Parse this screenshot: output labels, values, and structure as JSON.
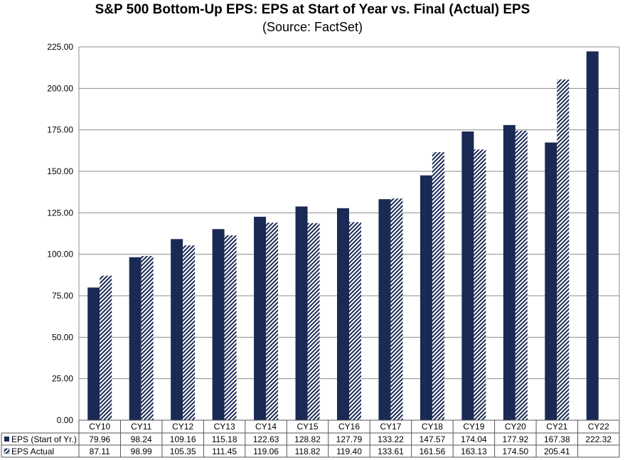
{
  "chart_data": {
    "type": "bar",
    "title": "S&P 500 Bottom-Up EPS: EPS at Start of Year vs. Final (Actual) EPS",
    "subtitle": "(Source: FactSet)",
    "xlabel": "",
    "ylabel": "",
    "ylim": [
      0,
      225
    ],
    "yticks": [
      "0.00",
      "25.00",
      "50.00",
      "75.00",
      "100.00",
      "125.00",
      "150.00",
      "175.00",
      "200.00",
      "225.00"
    ],
    "grid": true,
    "legend": "data-table-left",
    "categories": [
      "CY10",
      "CY11",
      "CY12",
      "CY13",
      "CY14",
      "CY15",
      "CY16",
      "CY17",
      "CY18",
      "CY19",
      "CY20",
      "CY21",
      "CY22"
    ],
    "series": [
      {
        "name": "EPS (Start of Yr.)",
        "color": "#1a2a54",
        "pattern": "solid",
        "values": [
          79.96,
          98.24,
          109.16,
          115.18,
          122.63,
          128.82,
          127.79,
          133.22,
          147.57,
          174.04,
          177.92,
          167.38,
          222.32
        ],
        "labels": [
          "79.96",
          "98.24",
          "109.16",
          "115.18",
          "122.63",
          "128.82",
          "127.79",
          "133.22",
          "147.57",
          "174.04",
          "177.92",
          "167.38",
          "222.32"
        ]
      },
      {
        "name": "EPS Actual",
        "color": "#1a2a54",
        "pattern": "diagonal-hatch",
        "values": [
          87.11,
          98.99,
          105.35,
          111.45,
          119.06,
          118.82,
          119.4,
          133.61,
          161.56,
          163.13,
          174.5,
          205.41,
          null
        ],
        "labels": [
          "87.11",
          "98.99",
          "105.35",
          "111.45",
          "119.06",
          "118.82",
          "119.40",
          "133.61",
          "161.56",
          "163.13",
          "174.50",
          "205.41",
          ""
        ]
      }
    ]
  }
}
